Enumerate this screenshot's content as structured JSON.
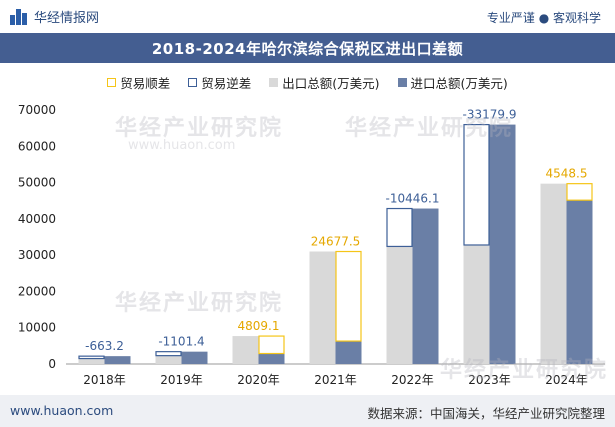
{
  "header": {
    "brand": "华经情报网",
    "slogan": "专业严谨 ● 客观科学",
    "title": "2018-2024年哈尔滨综合保税区进出口差额"
  },
  "footer": {
    "url": "www.huaon.com",
    "source": "数据来源：中国海关，华经产业研究院整理"
  },
  "watermark": {
    "text": "华经产业研究院",
    "url": "www.huaon.com"
  },
  "colors": {
    "surplus": "#f5c518",
    "deficit": "#3d5f97",
    "export": "#d9d9d9",
    "import": "#6a7fa6",
    "title_bg": "#445e91"
  },
  "chart_data": {
    "type": "bar",
    "title": "2018-2024年哈尔滨综合保税区进出口差额",
    "categories": [
      "2018年",
      "2019年",
      "2020年",
      "2021年",
      "2022年",
      "2023年",
      "2024年"
    ],
    "ylim": [
      0,
      70000
    ],
    "yticks": [
      0,
      10000,
      20000,
      30000,
      40000,
      50000,
      60000,
      70000
    ],
    "legend": [
      "贸易顺差",
      "贸易逆差",
      "出口总额(万美元)",
      "进口总额(万美元)"
    ],
    "legend_position": "top",
    "series": [
      {
        "name": "出口总额(万美元)",
        "values": [
          1500,
          2300,
          7700,
          31000,
          32400,
          32800,
          49700
        ]
      },
      {
        "name": "进口总额(万美元)",
        "values": [
          2163.2,
          3401.4,
          2890.9,
          6322.5,
          42846.1,
          65979.9,
          45151.5
        ]
      }
    ],
    "balance": [
      {
        "value": "-663.2",
        "kind": "deficit"
      },
      {
        "value": "-1101.4",
        "kind": "deficit"
      },
      {
        "value": "4809.1",
        "kind": "surplus"
      },
      {
        "value": "24677.5",
        "kind": "surplus"
      },
      {
        "value": "-10446.1",
        "kind": "deficit"
      },
      {
        "value": "-33179.9",
        "kind": "deficit"
      },
      {
        "value": "4548.5",
        "kind": "surplus"
      }
    ]
  }
}
